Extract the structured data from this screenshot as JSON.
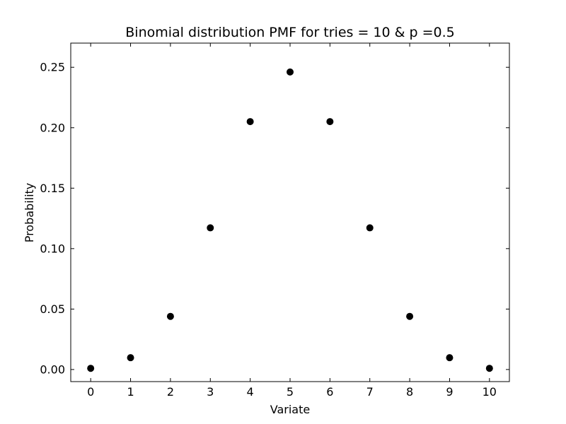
{
  "chart_data": {
    "type": "scatter",
    "title": "Binomial distribution PMF for tries = 10 & p =0.5",
    "xlabel": "Variate",
    "ylabel": "Probability",
    "x": [
      0,
      1,
      2,
      3,
      4,
      5,
      6,
      7,
      8,
      9,
      10
    ],
    "y": [
      0.000977,
      0.009766,
      0.043945,
      0.117188,
      0.205078,
      0.246094,
      0.205078,
      0.117188,
      0.043945,
      0.009766,
      0.000977
    ],
    "xlim": [
      -0.5,
      10.5
    ],
    "ylim": [
      -0.01,
      0.27
    ],
    "xticks": [
      0,
      1,
      2,
      3,
      4,
      5,
      6,
      7,
      8,
      9,
      10
    ],
    "xtick_labels": [
      "0",
      "1",
      "2",
      "3",
      "4",
      "5",
      "6",
      "7",
      "8",
      "9",
      "10"
    ],
    "yticks": [
      0.0,
      0.05,
      0.1,
      0.15,
      0.2,
      0.25
    ],
    "ytick_labels": [
      "0.00",
      "0.05",
      "0.10",
      "0.15",
      "0.20",
      "0.25"
    ],
    "grid": false,
    "marker_color": "#000000"
  }
}
